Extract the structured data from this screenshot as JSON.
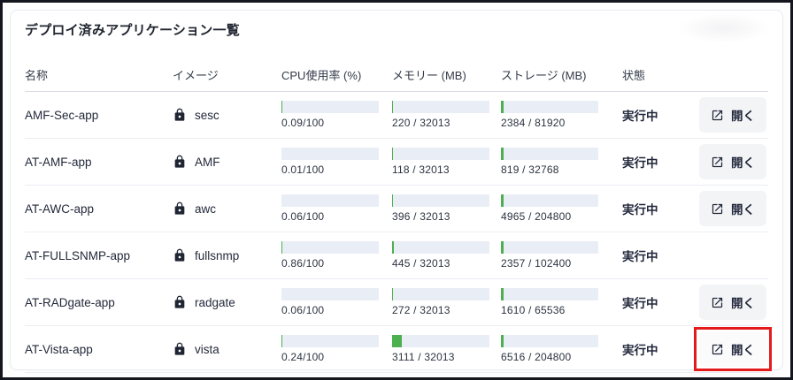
{
  "window": {
    "title": "デプロイ済みアプリケーション一覧"
  },
  "table": {
    "columns": [
      {
        "label": "名称"
      },
      {
        "label": "イメージ"
      },
      {
        "label": "CPU使用率 (%)"
      },
      {
        "label": "メモリー (MB)"
      },
      {
        "label": "ストレージ (MB)"
      },
      {
        "label": "状態"
      },
      {
        "label": ""
      }
    ],
    "open_button_label": "開く",
    "rows": [
      {
        "name": "AMF-Sec-app",
        "image": "sesc",
        "cpu": {
          "label": "0.09/100",
          "percent": 0.09
        },
        "memory": {
          "label": "220 / 32013",
          "percent": 0.69
        },
        "storage": {
          "label": "2384 / 81920",
          "percent": 2.91
        },
        "status": "実行中",
        "has_open_button": true,
        "highlighted": false
      },
      {
        "name": "AT-AMF-app",
        "image": "AMF",
        "cpu": {
          "label": "0.01/100",
          "percent": 0.01
        },
        "memory": {
          "label": "118 / 32013",
          "percent": 0.37
        },
        "storage": {
          "label": "819 / 32768",
          "percent": 2.5
        },
        "status": "実行中",
        "has_open_button": true,
        "highlighted": false
      },
      {
        "name": "AT-AWC-app",
        "image": "awc",
        "cpu": {
          "label": "0.06/100",
          "percent": 0.06
        },
        "memory": {
          "label": "396 / 32013",
          "percent": 1.24
        },
        "storage": {
          "label": "4965 / 204800",
          "percent": 2.42
        },
        "status": "実行中",
        "has_open_button": true,
        "highlighted": false
      },
      {
        "name": "AT-FULLSNMP-app",
        "image": "fullsnmp",
        "cpu": {
          "label": "0.86/100",
          "percent": 0.86
        },
        "memory": {
          "label": "445 / 32013",
          "percent": 1.39
        },
        "storage": {
          "label": "2357 / 102400",
          "percent": 2.3
        },
        "status": "実行中",
        "has_open_button": false,
        "highlighted": false
      },
      {
        "name": "AT-RADgate-app",
        "image": "radgate",
        "cpu": {
          "label": "0.06/100",
          "percent": 0.06
        },
        "memory": {
          "label": "272 / 32013",
          "percent": 0.85
        },
        "storage": {
          "label": "1610 / 65536",
          "percent": 2.46
        },
        "status": "実行中",
        "has_open_button": true,
        "highlighted": false
      },
      {
        "name": "AT-Vista-app",
        "image": "vista",
        "cpu": {
          "label": "0.24/100",
          "percent": 0.24
        },
        "memory": {
          "label": "3111 / 32013",
          "percent": 9.72
        },
        "storage": {
          "label": "6516 / 204800",
          "percent": 3.18
        },
        "status": "実行中",
        "has_open_button": true,
        "highlighted": true
      }
    ]
  },
  "colors": {
    "bar_fill": "#4caf50",
    "bar_background": "#e9eef6",
    "highlight_border": "#e51a1d"
  }
}
